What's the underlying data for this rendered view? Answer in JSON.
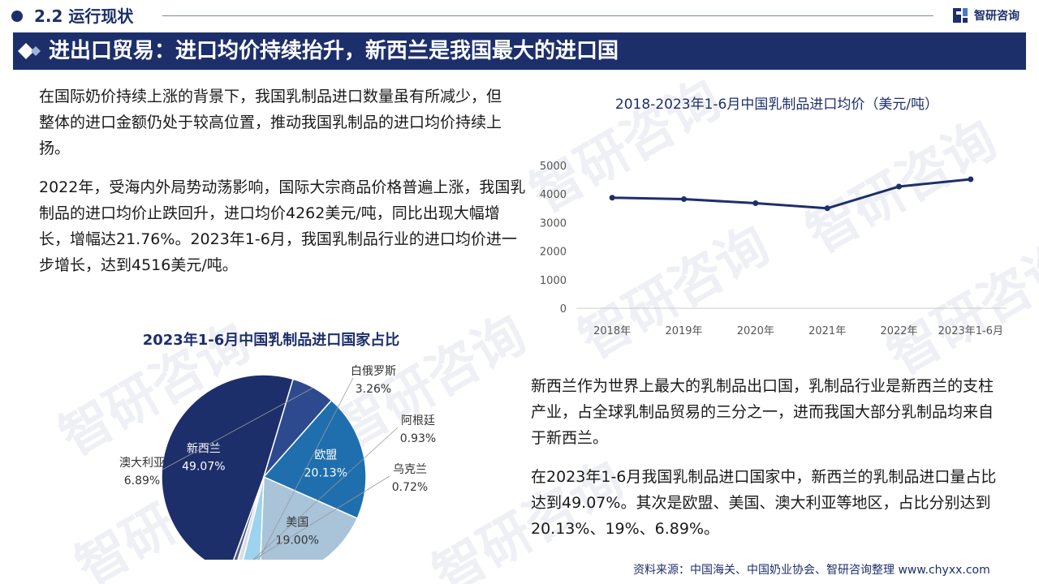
{
  "header": {
    "section_title": "2.2 运行现状",
    "logo_text": "智研咨询"
  },
  "banner": {
    "title": "进出口贸易：进口均价持续抬升，新西兰是我国最大的进口国"
  },
  "paragraphs": {
    "p1": "在国际奶价持续上涨的背景下，我国乳制品进口数量虽有所减少，但整体的进口金额仍处于较高位置，推动我国乳制品的进口均价持续上扬。",
    "p2": "2022年，受海内外局势动荡影响，国际大宗商品价格普遍上涨，我国乳制品的进口均价止跌回升，进口均价4262美元/吨，同比出现大幅增长，增幅达21.76%。2023年1-6月，我国乳制品行业的进口均价进一步增长，达到4516美元/吨。",
    "p3": "新西兰作为世界上最大的乳制品出口国，乳制品行业是新西兰的支柱产业，占全球乳制品贸易的三分之一，进而我国大部分乳制品均来自于新西兰。",
    "p4": "在2023年1-6月我国乳制品进口国家中，新西兰的乳制品进口量占比达到49.07%。其次是欧盟、美国、澳大利亚等地区，占比分别达到20.13%、19%、6.89%。"
  },
  "source": "资料来源：中国海关、中国奶业协会、智研咨询整理  www.chyxx.com",
  "watermark_text": "智研咨询",
  "chart_data": [
    {
      "type": "line",
      "title": "2018-2023年1-6月中国乳制品进口均价（美元/吨）",
      "x": [
        "2018年",
        "2019年",
        "2020年",
        "2021年",
        "2022年",
        "2023年1-6月"
      ],
      "series": [
        {
          "values": [
            3870,
            3820,
            3680,
            3500,
            4262,
            4516
          ]
        }
      ],
      "ylim": [
        0,
        5000
      ],
      "yticks": [
        0,
        1000,
        2000,
        3000,
        4000,
        5000
      ],
      "grid": false,
      "colors": {
        "line": "#1d2f6b",
        "tick": "#555555"
      }
    },
    {
      "type": "pie",
      "title": "2023年1-6月中国乳制品进口国家占比",
      "slices": [
        {
          "label": "新西兰",
          "value": 49.07,
          "display": "49.07%",
          "color": "#1d2f6b"
        },
        {
          "label": "澳大利亚",
          "value": 6.89,
          "display": "6.89%",
          "color": "#2e4a8f"
        },
        {
          "label": "欧盟",
          "value": 20.13,
          "display": "20.13%",
          "color": "#1f6fae"
        },
        {
          "label": "美国",
          "value": 19.0,
          "display": "19.00%",
          "color": "#a9c3d9"
        },
        {
          "label": "白俄罗斯",
          "value": 3.26,
          "display": "3.26%",
          "color": "#9dd3ef"
        },
        {
          "label": "阿根廷",
          "value": 0.93,
          "display": "0.93%",
          "color": "#d9dde6"
        },
        {
          "label": "乌克兰",
          "value": 0.72,
          "display": "0.72%",
          "color": "#4f5f80"
        }
      ]
    }
  ]
}
